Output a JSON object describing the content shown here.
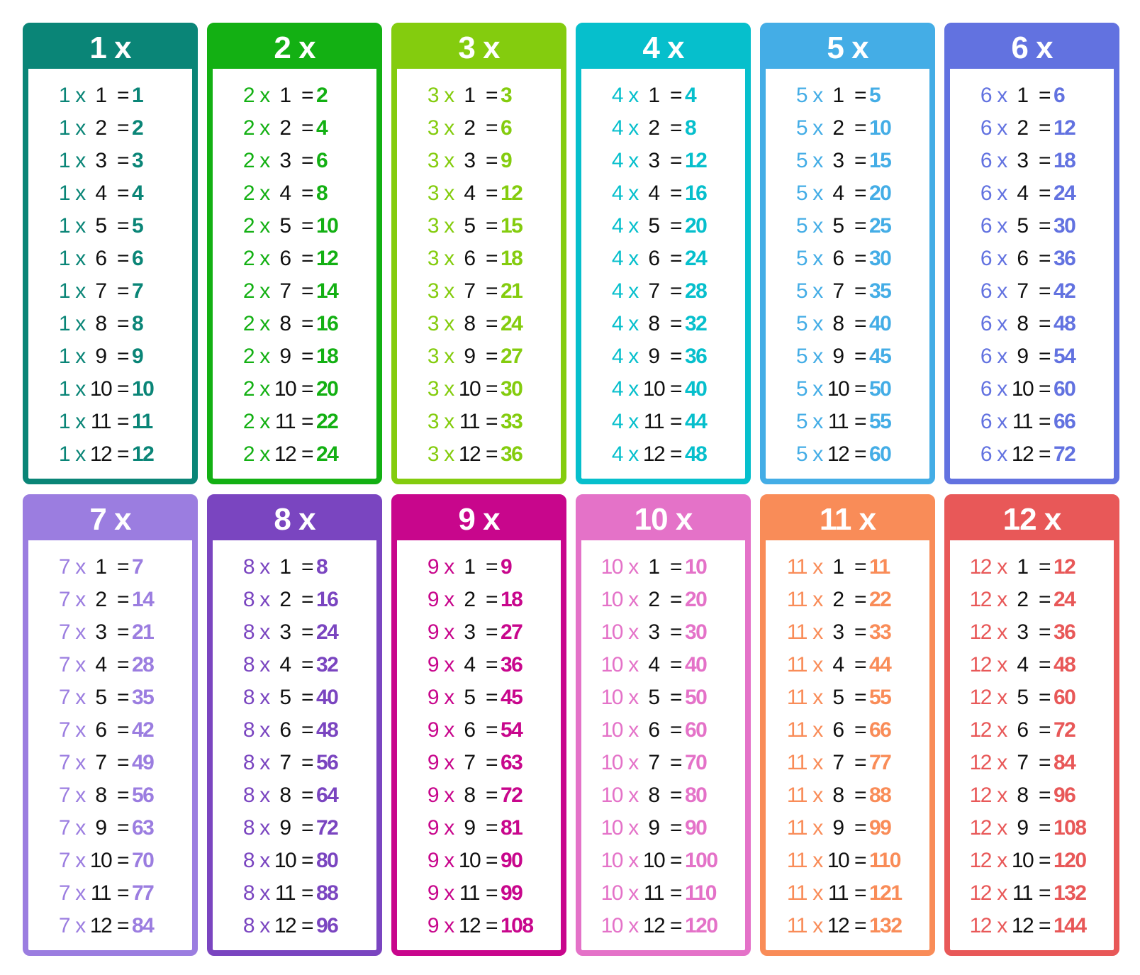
{
  "symbols": {
    "times": "x",
    "equals": "="
  },
  "multipliers": [
    1,
    2,
    3,
    4,
    5,
    6,
    7,
    8,
    9,
    10,
    11,
    12
  ],
  "tables": [
    {
      "n": "1",
      "label": "1 x",
      "color": "#0a8577",
      "products": [
        "1",
        "2",
        "3",
        "4",
        "5",
        "6",
        "7",
        "8",
        "9",
        "10",
        "11",
        "12"
      ]
    },
    {
      "n": "2",
      "label": "2 x",
      "color": "#13b013",
      "products": [
        "2",
        "4",
        "6",
        "8",
        "10",
        "12",
        "14",
        "16",
        "18",
        "20",
        "22",
        "24"
      ]
    },
    {
      "n": "3",
      "label": "3 x",
      "color": "#84cc0e",
      "products": [
        "3",
        "6",
        "9",
        "12",
        "15",
        "18",
        "21",
        "24",
        "27",
        "30",
        "33",
        "36"
      ]
    },
    {
      "n": "4",
      "label": "4 x",
      "color": "#06bfcc",
      "products": [
        "4",
        "8",
        "12",
        "16",
        "20",
        "24",
        "28",
        "32",
        "36",
        "40",
        "44",
        "48"
      ]
    },
    {
      "n": "5",
      "label": "5 x",
      "color": "#44ade6",
      "products": [
        "5",
        "10",
        "15",
        "20",
        "25",
        "30",
        "35",
        "40",
        "45",
        "50",
        "55",
        "60"
      ]
    },
    {
      "n": "6",
      "label": "6 x",
      "color": "#6272e0",
      "products": [
        "6",
        "12",
        "18",
        "24",
        "30",
        "36",
        "42",
        "48",
        "54",
        "60",
        "66",
        "72"
      ]
    },
    {
      "n": "7",
      "label": "7 x",
      "color": "#9b7de0",
      "products": [
        "7",
        "14",
        "21",
        "28",
        "35",
        "42",
        "49",
        "56",
        "63",
        "70",
        "77",
        "84"
      ]
    },
    {
      "n": "8",
      "label": "8 x",
      "color": "#7a45c0",
      "products": [
        "8",
        "16",
        "24",
        "32",
        "40",
        "48",
        "56",
        "64",
        "72",
        "80",
        "88",
        "96"
      ]
    },
    {
      "n": "9",
      "label": "9 x",
      "color": "#c8068c",
      "products": [
        "9",
        "18",
        "27",
        "36",
        "45",
        "54",
        "63",
        "72",
        "81",
        "90",
        "99",
        "108"
      ]
    },
    {
      "n": "10",
      "label": "10 x",
      "color": "#e472c8",
      "products": [
        "10",
        "20",
        "30",
        "40",
        "50",
        "60",
        "70",
        "80",
        "90",
        "100",
        "110",
        "120"
      ]
    },
    {
      "n": "11",
      "label": "11 x",
      "color": "#f98c58",
      "products": [
        "11",
        "22",
        "33",
        "44",
        "55",
        "66",
        "77",
        "88",
        "99",
        "110",
        "121",
        "132"
      ]
    },
    {
      "n": "12",
      "label": "12 x",
      "color": "#e85858",
      "products": [
        "12",
        "24",
        "36",
        "48",
        "60",
        "72",
        "84",
        "96",
        "108",
        "120",
        "132",
        "144"
      ]
    }
  ]
}
